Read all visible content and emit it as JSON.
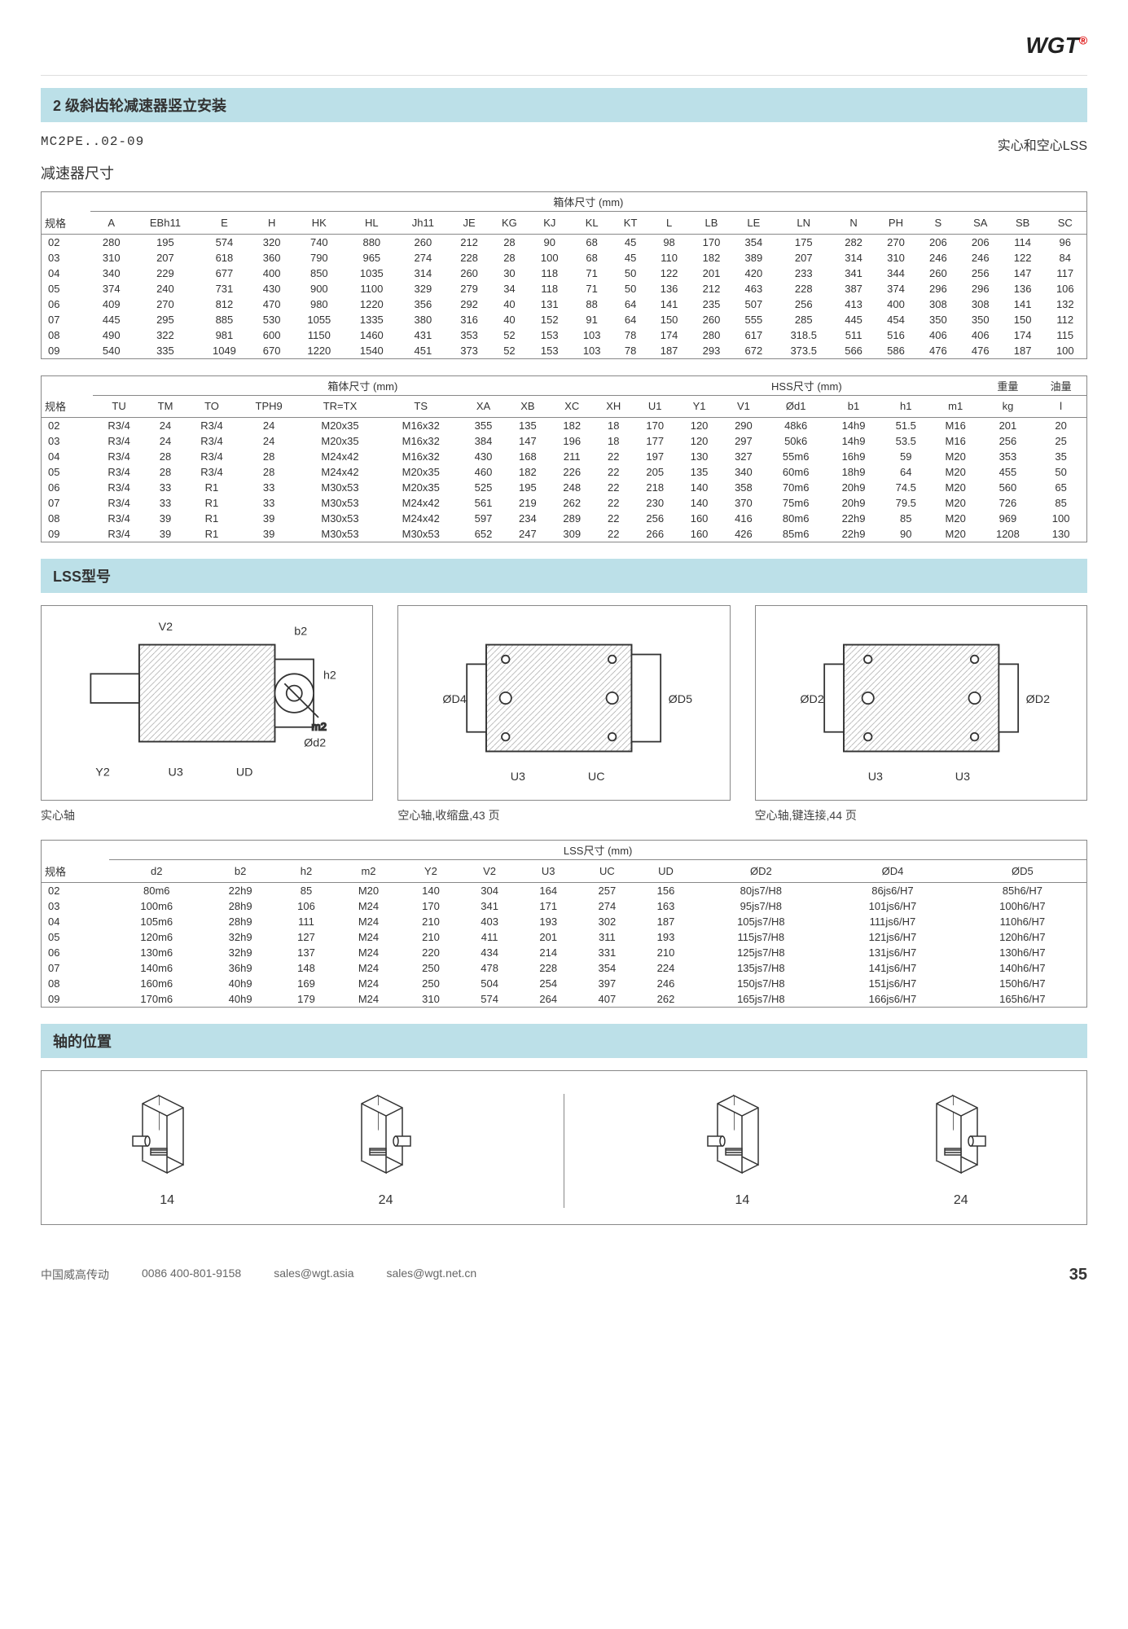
{
  "logo": "WGT",
  "section_title": "2 级斜齿轮减速器竖立安装",
  "model": "MC2PE..02-09",
  "model_right": "实心和空心LSS",
  "subtitle1": "减速器尺寸",
  "table1": {
    "group_header": "箱体尺寸 (mm)",
    "cols": [
      "规格",
      "A",
      "EBh11",
      "E",
      "H",
      "HK",
      "HL",
      "Jh11",
      "JE",
      "KG",
      "KJ",
      "KL",
      "KT",
      "L",
      "LB",
      "LE",
      "LN",
      "N",
      "PH",
      "S",
      "SA",
      "SB",
      "SC"
    ],
    "rows": [
      [
        "02",
        "280",
        "195",
        "574",
        "320",
        "740",
        "880",
        "260",
        "212",
        "28",
        "90",
        "68",
        "45",
        "98",
        "170",
        "354",
        "175",
        "282",
        "270",
        "206",
        "206",
        "114",
        "96"
      ],
      [
        "03",
        "310",
        "207",
        "618",
        "360",
        "790",
        "965",
        "274",
        "228",
        "28",
        "100",
        "68",
        "45",
        "110",
        "182",
        "389",
        "207",
        "314",
        "310",
        "246",
        "246",
        "122",
        "84"
      ],
      [
        "04",
        "340",
        "229",
        "677",
        "400",
        "850",
        "1035",
        "314",
        "260",
        "30",
        "118",
        "71",
        "50",
        "122",
        "201",
        "420",
        "233",
        "341",
        "344",
        "260",
        "256",
        "147",
        "117"
      ],
      [
        "05",
        "374",
        "240",
        "731",
        "430",
        "900",
        "1100",
        "329",
        "279",
        "34",
        "118",
        "71",
        "50",
        "136",
        "212",
        "463",
        "228",
        "387",
        "374",
        "296",
        "296",
        "136",
        "106"
      ],
      [
        "06",
        "409",
        "270",
        "812",
        "470",
        "980",
        "1220",
        "356",
        "292",
        "40",
        "131",
        "88",
        "64",
        "141",
        "235",
        "507",
        "256",
        "413",
        "400",
        "308",
        "308",
        "141",
        "132"
      ],
      [
        "07",
        "445",
        "295",
        "885",
        "530",
        "1055",
        "1335",
        "380",
        "316",
        "40",
        "152",
        "91",
        "64",
        "150",
        "260",
        "555",
        "285",
        "445",
        "454",
        "350",
        "350",
        "150",
        "112"
      ],
      [
        "08",
        "490",
        "322",
        "981",
        "600",
        "1150",
        "1460",
        "431",
        "353",
        "52",
        "153",
        "103",
        "78",
        "174",
        "280",
        "617",
        "318.5",
        "511",
        "516",
        "406",
        "406",
        "174",
        "115"
      ],
      [
        "09",
        "540",
        "335",
        "1049",
        "670",
        "1220",
        "1540",
        "451",
        "373",
        "52",
        "153",
        "103",
        "78",
        "187",
        "293",
        "672",
        "373.5",
        "566",
        "586",
        "476",
        "476",
        "187",
        "100"
      ]
    ]
  },
  "table2": {
    "group1": "箱体尺寸 (mm)",
    "group2": "HSS尺寸 (mm)",
    "group3": "重量",
    "group4": "油量",
    "cols": [
      "规格",
      "TU",
      "TM",
      "TO",
      "TPH9",
      "TR=TX",
      "TS",
      "XA",
      "XB",
      "XC",
      "XH",
      "U1",
      "Y1",
      "V1",
      "Ød1",
      "b1",
      "h1",
      "m1",
      "kg",
      "l"
    ],
    "rows": [
      [
        "02",
        "R3/4",
        "24",
        "R3/4",
        "24",
        "M20x35",
        "M16x32",
        "355",
        "135",
        "182",
        "18",
        "170",
        "120",
        "290",
        "48k6",
        "14h9",
        "51.5",
        "M16",
        "201",
        "20"
      ],
      [
        "03",
        "R3/4",
        "24",
        "R3/4",
        "24",
        "M20x35",
        "M16x32",
        "384",
        "147",
        "196",
        "18",
        "177",
        "120",
        "297",
        "50k6",
        "14h9",
        "53.5",
        "M16",
        "256",
        "25"
      ],
      [
        "04",
        "R3/4",
        "28",
        "R3/4",
        "28",
        "M24x42",
        "M16x32",
        "430",
        "168",
        "211",
        "22",
        "197",
        "130",
        "327",
        "55m6",
        "16h9",
        "59",
        "M20",
        "353",
        "35"
      ],
      [
        "05",
        "R3/4",
        "28",
        "R3/4",
        "28",
        "M24x42",
        "M20x35",
        "460",
        "182",
        "226",
        "22",
        "205",
        "135",
        "340",
        "60m6",
        "18h9",
        "64",
        "M20",
        "455",
        "50"
      ],
      [
        "06",
        "R3/4",
        "33",
        "R1",
        "33",
        "M30x53",
        "M20x35",
        "525",
        "195",
        "248",
        "22",
        "218",
        "140",
        "358",
        "70m6",
        "20h9",
        "74.5",
        "M20",
        "560",
        "65"
      ],
      [
        "07",
        "R3/4",
        "33",
        "R1",
        "33",
        "M30x53",
        "M24x42",
        "561",
        "219",
        "262",
        "22",
        "230",
        "140",
        "370",
        "75m6",
        "20h9",
        "79.5",
        "M20",
        "726",
        "85"
      ],
      [
        "08",
        "R3/4",
        "39",
        "R1",
        "39",
        "M30x53",
        "M24x42",
        "597",
        "234",
        "289",
        "22",
        "256",
        "160",
        "416",
        "80m6",
        "22h9",
        "85",
        "M20",
        "969",
        "100"
      ],
      [
        "09",
        "R3/4",
        "39",
        "R1",
        "39",
        "M30x53",
        "M30x53",
        "652",
        "247",
        "309",
        "22",
        "266",
        "160",
        "426",
        "85m6",
        "22h9",
        "90",
        "M20",
        "1208",
        "130"
      ]
    ]
  },
  "lss_title": "LSS型号",
  "diagrams": [
    {
      "caption": "实心轴",
      "labels": [
        "V2",
        "b2",
        "h2",
        "Ød2",
        "m2",
        "Y2",
        "U3",
        "UD"
      ]
    },
    {
      "caption": "空心轴,收缩盘,43 页",
      "labels": [
        "ØD4",
        "ØD5",
        "U3",
        "UC"
      ]
    },
    {
      "caption": "空心轴,键连接,44 页",
      "labels": [
        "ØD2",
        "ØD2",
        "U3",
        "U3"
      ]
    }
  ],
  "table3": {
    "group_header": "LSS尺寸 (mm)",
    "cols": [
      "规格",
      "d2",
      "b2",
      "h2",
      "m2",
      "Y2",
      "V2",
      "U3",
      "UC",
      "UD",
      "ØD2",
      "ØD4",
      "ØD5"
    ],
    "rows": [
      [
        "02",
        "80m6",
        "22h9",
        "85",
        "M20",
        "140",
        "304",
        "164",
        "257",
        "156",
        "80js7/H8",
        "86js6/H7",
        "85h6/H7"
      ],
      [
        "03",
        "100m6",
        "28h9",
        "106",
        "M24",
        "170",
        "341",
        "171",
        "274",
        "163",
        "95js7/H8",
        "101js6/H7",
        "100h6/H7"
      ],
      [
        "04",
        "105m6",
        "28h9",
        "111",
        "M24",
        "210",
        "403",
        "193",
        "302",
        "187",
        "105js7/H8",
        "111js6/H7",
        "110h6/H7"
      ],
      [
        "05",
        "120m6",
        "32h9",
        "127",
        "M24",
        "210",
        "411",
        "201",
        "311",
        "193",
        "115js7/H8",
        "121js6/H7",
        "120h6/H7"
      ],
      [
        "06",
        "130m6",
        "32h9",
        "137",
        "M24",
        "220",
        "434",
        "214",
        "331",
        "210",
        "125js7/H8",
        "131js6/H7",
        "130h6/H7"
      ],
      [
        "07",
        "140m6",
        "36h9",
        "148",
        "M24",
        "250",
        "478",
        "228",
        "354",
        "224",
        "135js7/H8",
        "141js6/H7",
        "140h6/H7"
      ],
      [
        "08",
        "160m6",
        "40h9",
        "169",
        "M24",
        "250",
        "504",
        "254",
        "397",
        "246",
        "150js7/H8",
        "151js6/H7",
        "150h6/H7"
      ],
      [
        "09",
        "170m6",
        "40h9",
        "179",
        "M24",
        "310",
        "574",
        "264",
        "407",
        "262",
        "165js7/H8",
        "166js6/H7",
        "165h6/H7"
      ]
    ]
  },
  "shaft_title": "轴的位置",
  "shaft_nums": [
    "14",
    "24",
    "14",
    "24"
  ],
  "footer": {
    "company": "中国威高传动",
    "phone": "0086 400-801-9158",
    "email1": "sales@wgt.asia",
    "email2": "sales@wgt.net.cn",
    "page": "35"
  },
  "colors": {
    "section_bg": "#bce0e8",
    "border": "#888888",
    "text": "#333333"
  }
}
